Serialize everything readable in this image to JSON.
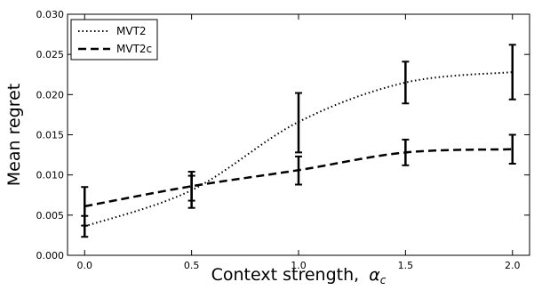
{
  "chart_data": {
    "type": "line",
    "xlabel": "Context strength,",
    "xlabel_symbol": "α",
    "xlabel_subscript": "c",
    "ylabel": "Mean regret",
    "xlim": [
      -0.08,
      2.08
    ],
    "ylim": [
      0.0,
      0.03
    ],
    "x_ticks": [
      0.0,
      0.5,
      1.0,
      1.5,
      2.0
    ],
    "x_tick_labels": [
      "0.0",
      "0.5",
      "1.0",
      "1.5",
      "2.0"
    ],
    "y_ticks": [
      0.0,
      0.005,
      0.01,
      0.015,
      0.02,
      0.025,
      0.03
    ],
    "y_tick_labels": [
      "0.000",
      "0.005",
      "0.010",
      "0.015",
      "0.020",
      "0.025",
      "0.030"
    ],
    "grid": false,
    "legend_position": "top-left",
    "x": [
      0.0,
      0.5,
      1.0,
      1.5,
      2.0
    ],
    "series": [
      {
        "name": "MVT2",
        "style": "dotted",
        "color": "#000000",
        "values": [
          0.0036,
          0.0081,
          0.0166,
          0.0215,
          0.0228
        ],
        "err_low": [
          0.0023,
          0.0059,
          0.0128,
          0.0189,
          0.0194
        ],
        "err_high": [
          0.0049,
          0.0099,
          0.0202,
          0.0241,
          0.0262
        ]
      },
      {
        "name": "MVT2c",
        "style": "dashed",
        "color": "#000000",
        "values": [
          0.0061,
          0.0086,
          0.0106,
          0.0128,
          0.0132
        ],
        "err_low": [
          0.0037,
          0.0068,
          0.0088,
          0.0112,
          0.0114
        ],
        "err_high": [
          0.0085,
          0.0104,
          0.0123,
          0.0144,
          0.015
        ]
      }
    ]
  }
}
